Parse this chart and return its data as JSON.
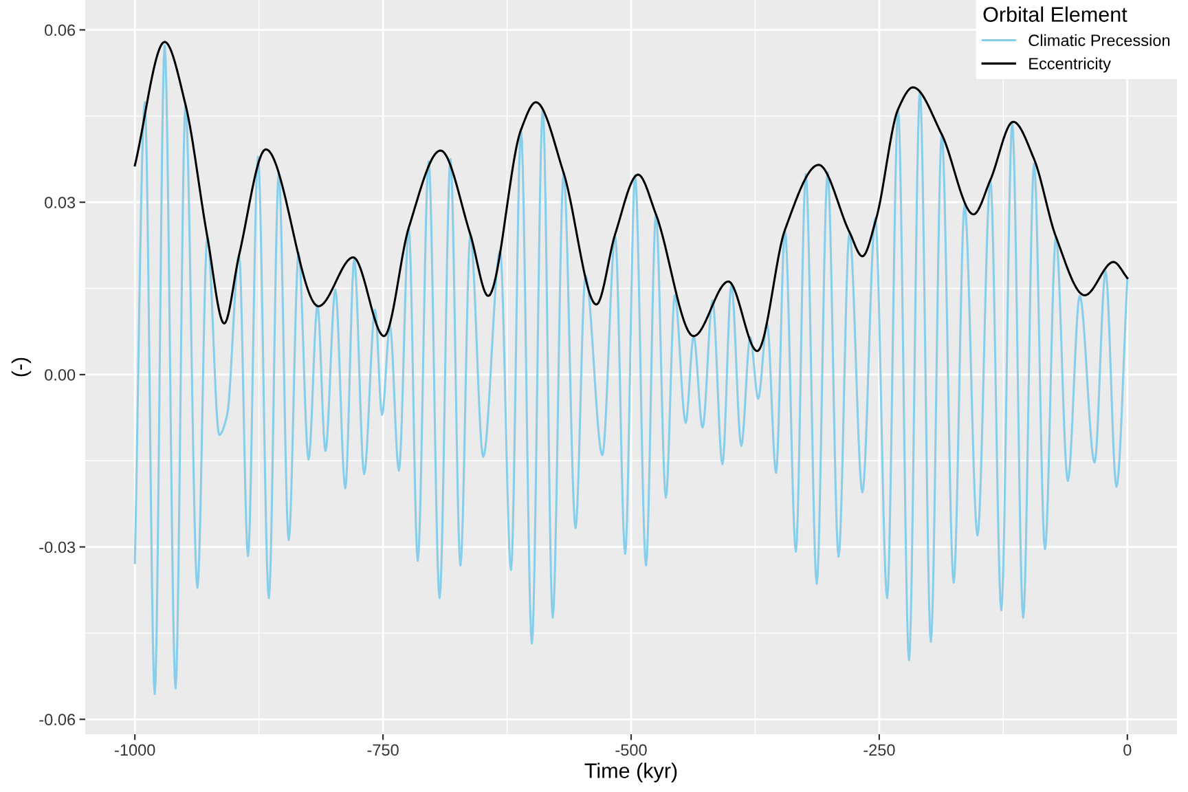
{
  "chart_data": {
    "type": "line",
    "xlabel": "Time (kyr)",
    "ylabel": "(-)",
    "legend_title": "Orbital Element",
    "legend": "top right",
    "grid": true,
    "xlim": [
      -1050,
      50
    ],
    "ylim": [
      -0.0626,
      0.0652
    ],
    "xticks": [
      -1000,
      -750,
      -500,
      -250,
      0
    ],
    "yticks": [
      {
        "value": -0.06,
        "label": "-0.06"
      },
      {
        "value": -0.03,
        "label": "-0.03"
      },
      {
        "value": 0,
        "label": "0.00"
      },
      {
        "value": 0.03,
        "label": "0.03"
      },
      {
        "value": 0.06,
        "label": "0.06"
      }
    ],
    "series": [
      {
        "name": "Climatic Precession",
        "color": "#87ceeb",
        "x": [
          -1000,
          -990,
          -980,
          -970,
          -959,
          -949,
          -937,
          -927,
          -915,
          -907,
          -895,
          -886,
          -876,
          -865,
          -855,
          -845,
          -835,
          -825,
          -816,
          -808,
          -798,
          -788,
          -779,
          -769,
          -758,
          -751,
          -743,
          -734,
          -724,
          -715,
          -704,
          -693,
          -682,
          -672,
          -662,
          -649,
          -632,
          -621,
          -611,
          -600,
          -589,
          -579,
          -568,
          -556,
          -546,
          -529,
          -516,
          -506,
          -496,
          -485,
          -475,
          -465,
          -456,
          -445,
          -437,
          -428,
          -418,
          -408,
          -399,
          -389,
          -380,
          -372,
          -363,
          -354,
          -345,
          -334,
          -324,
          -313,
          -302,
          -291,
          -280,
          -267,
          -254,
          -242,
          -231,
          -220,
          -209,
          -198,
          -187,
          -175,
          -164,
          -151,
          -138,
          -127,
          -116,
          -105,
          -94,
          -83,
          -72,
          -60,
          -48,
          -33,
          -22,
          -11,
          0
        ],
        "values": [
          -0.0328,
          0.0474,
          -0.0556,
          0.0573,
          -0.0546,
          0.047,
          -0.0371,
          0.024,
          -0.0105,
          -0.007,
          0.0208,
          -0.0316,
          0.0379,
          -0.0389,
          0.0351,
          -0.0288,
          0.0212,
          -0.0148,
          0.0121,
          -0.0133,
          0.0148,
          -0.0198,
          0.02,
          -0.0173,
          0.0113,
          -0.007,
          0.0085,
          -0.0167,
          0.0256,
          -0.0324,
          0.0371,
          -0.0389,
          0.0375,
          -0.0332,
          0.0244,
          -0.0143,
          0.0216,
          -0.034,
          0.0426,
          -0.0468,
          0.0463,
          -0.0423,
          0.0351,
          -0.0267,
          0.0172,
          -0.014,
          0.024,
          -0.0312,
          0.0347,
          -0.0332,
          0.0279,
          -0.0214,
          0.0138,
          -0.0084,
          0.0067,
          -0.0092,
          0.0129,
          -0.0156,
          0.0156,
          -0.0124,
          0.0065,
          -0.0042,
          0.0089,
          -0.0171,
          0.0252,
          -0.0308,
          0.0349,
          -0.0364,
          0.0352,
          -0.0317,
          0.0248,
          -0.0205,
          0.0272,
          -0.0389,
          0.0462,
          -0.0497,
          0.0494,
          -0.0465,
          0.0418,
          -0.0362,
          0.0295,
          -0.028,
          0.0339,
          -0.041,
          0.0438,
          -0.0423,
          0.0367,
          -0.0304,
          0.024,
          -0.0185,
          0.0137,
          -0.0153,
          0.018,
          -0.0195,
          0.0168
        ]
      },
      {
        "name": "Eccentricity",
        "color": "#000000",
        "x": [
          -1000,
          -970,
          -949,
          -927,
          -910,
          -895,
          -868,
          -815,
          -780,
          -749,
          -724,
          -692,
          -662,
          -644,
          -611,
          -596,
          -568,
          -535,
          -516,
          -493,
          -475,
          -437,
          -402,
          -373,
          -345,
          -311,
          -280,
          -267,
          -253,
          -231,
          -216,
          -187,
          -155,
          -138,
          -115,
          -94,
          -72,
          -43,
          -14,
          0
        ],
        "values": [
          0.0364,
          0.0579,
          0.047,
          0.024,
          0.0089,
          0.0208,
          0.0392,
          0.0119,
          0.0204,
          0.0067,
          0.0256,
          0.039,
          0.0244,
          0.0137,
          0.0426,
          0.0474,
          0.0351,
          0.0122,
          0.0245,
          0.0348,
          0.0279,
          0.0067,
          0.0162,
          0.0041,
          0.0252,
          0.0365,
          0.0248,
          0.0206,
          0.0272,
          0.0462,
          0.05,
          0.0418,
          0.0279,
          0.0339,
          0.044,
          0.0375,
          0.024,
          0.0138,
          0.0196,
          0.0168
        ]
      }
    ]
  }
}
